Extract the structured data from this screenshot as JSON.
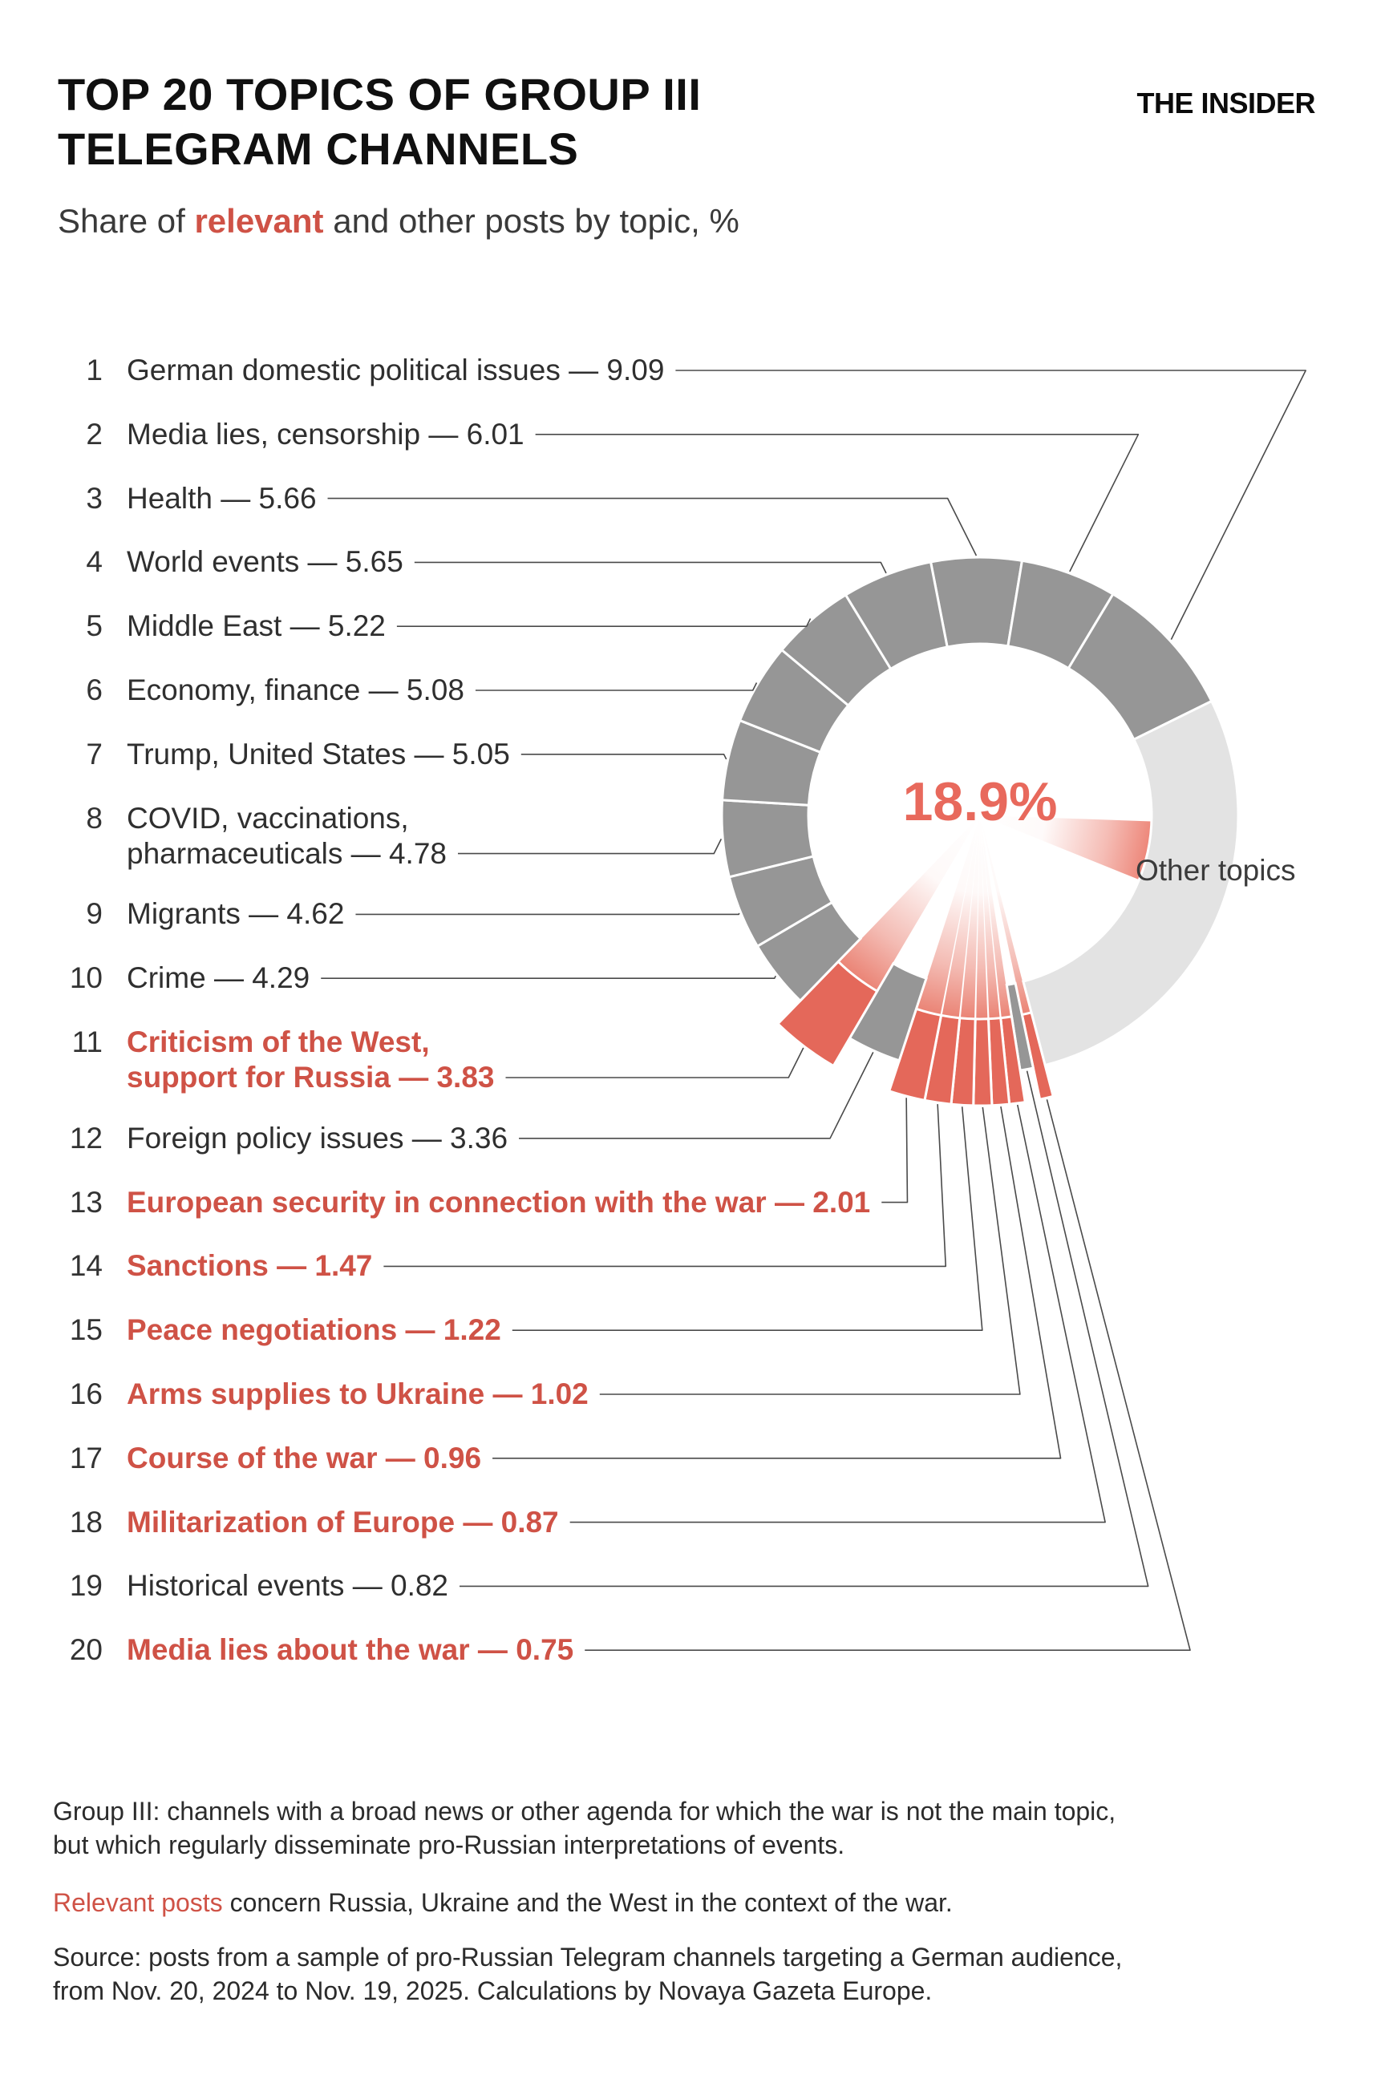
{
  "header": {
    "title_line1": "TOP 20 TOPICS OF GROUP III",
    "title_line2": "TELEGRAM CHANNELS",
    "logo": "THE INSIDER",
    "subtitle_prefix": "Share of ",
    "subtitle_emphasis": "relevant",
    "subtitle_suffix": " and other posts by topic, %"
  },
  "chart_data": {
    "type": "donut",
    "title": "Top 20 topics of Group III Telegram channels, share of posts by topic (%)",
    "center_label": "18.9%",
    "center_label_meaning": "total share of relevant posts",
    "other_segment_label": "Other topics",
    "legend_position": "labels with leader lines, list on left",
    "topics": [
      {
        "rank": 1,
        "lines": [
          "German domestic political issues"
        ],
        "value": 9.09,
        "relevant": false
      },
      {
        "rank": 2,
        "lines": [
          "Media lies, censorship"
        ],
        "value": 6.01,
        "relevant": false
      },
      {
        "rank": 3,
        "lines": [
          "Health"
        ],
        "value": 5.66,
        "relevant": false
      },
      {
        "rank": 4,
        "lines": [
          "World events"
        ],
        "value": 5.65,
        "relevant": false
      },
      {
        "rank": 5,
        "lines": [
          "Middle East"
        ],
        "value": 5.22,
        "relevant": false
      },
      {
        "rank": 6,
        "lines": [
          "Economy, finance"
        ],
        "value": 5.08,
        "relevant": false
      },
      {
        "rank": 7,
        "lines": [
          "Trump, United States"
        ],
        "value": 5.05,
        "relevant": false
      },
      {
        "rank": 8,
        "lines": [
          "COVID, vaccinations,",
          "pharmaceuticals"
        ],
        "value": 4.78,
        "relevant": false
      },
      {
        "rank": 9,
        "lines": [
          "Migrants"
        ],
        "value": 4.62,
        "relevant": false
      },
      {
        "rank": 10,
        "lines": [
          "Crime"
        ],
        "value": 4.29,
        "relevant": false
      },
      {
        "rank": 11,
        "lines": [
          "Criticism of the West,",
          "support for Russia"
        ],
        "value": 3.83,
        "relevant": true
      },
      {
        "rank": 12,
        "lines": [
          "Foreign policy issues"
        ],
        "value": 3.36,
        "relevant": false
      },
      {
        "rank": 13,
        "lines": [
          "European security in connection with the war"
        ],
        "value": 2.01,
        "relevant": true
      },
      {
        "rank": 14,
        "lines": [
          "Sanctions"
        ],
        "value": 1.47,
        "relevant": true
      },
      {
        "rank": 15,
        "lines": [
          "Peace negotiations"
        ],
        "value": 1.22,
        "relevant": true
      },
      {
        "rank": 16,
        "lines": [
          "Arms supplies to Ukraine"
        ],
        "value": 1.02,
        "relevant": true
      },
      {
        "rank": 17,
        "lines": [
          "Course of the war"
        ],
        "value": 0.96,
        "relevant": true
      },
      {
        "rank": 18,
        "lines": [
          "Militarization of Europe"
        ],
        "value": 0.87,
        "relevant": true
      },
      {
        "rank": 19,
        "lines": [
          "Historical events"
        ],
        "value": 0.82,
        "relevant": false
      },
      {
        "rank": 20,
        "lines": [
          "Media lies about the war"
        ],
        "value": 0.75,
        "relevant": true
      }
    ],
    "colors": {
      "segment_gray": "#969696",
      "segment_other_gray": "#e3e3e3",
      "segment_red": "#e4685a",
      "beam_red": "#e56553",
      "other_wedge_red": "#ec8072",
      "text_red": "#cf5246",
      "center_text_red": "#e8695c",
      "leader_line": "#4a4a4a",
      "dark_text": "#2f2f2f"
    }
  },
  "footnotes": {
    "group_lines": [
      "Group III: channels with a broad news or other agenda for which the war is not the main topic,",
      "but which regularly disseminate pro-Russian interpretations of events."
    ],
    "relevant_emphasis": "Relevant posts",
    "relevant_rest": " concern Russia, Ukraine and the West in the context of the war.",
    "source_lines": [
      "Source: posts from a sample of pro-Russian Telegram channels targeting a German audience,",
      "from Nov. 20, 2024 to Nov. 19, 2025. Calculations by Novaya Gazeta Europe."
    ]
  }
}
